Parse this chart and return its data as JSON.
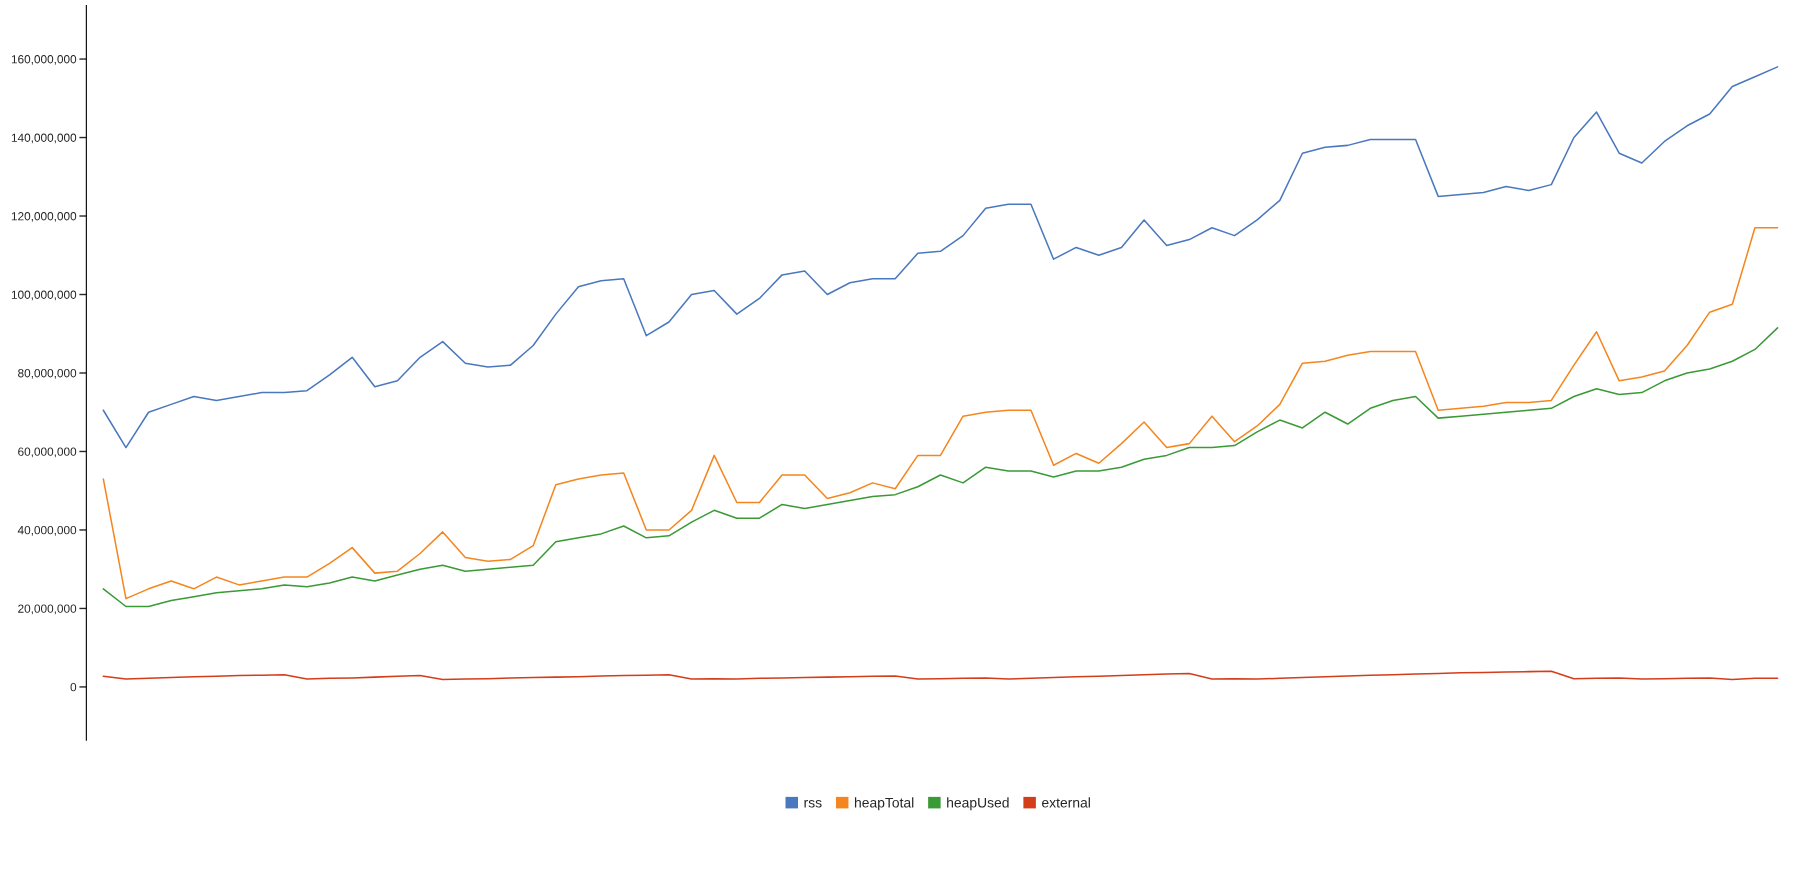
{
  "chart_data": {
    "type": "line",
    "categories": [
      null,
      null,
      null,
      null,
      null,
      null,
      null,
      null,
      null,
      null,
      null,
      null,
      null,
      null,
      null,
      null,
      null,
      null,
      null,
      null,
      null,
      null,
      null,
      null,
      null,
      null,
      null,
      null,
      null,
      null,
      null,
      null,
      null,
      null,
      null,
      null,
      null,
      null,
      null,
      null,
      null,
      null,
      null,
      null,
      null,
      null,
      null,
      null,
      null,
      null,
      null,
      null,
      null,
      null,
      null,
      null,
      null,
      null,
      null,
      null,
      null,
      null,
      null,
      null,
      null,
      null,
      null,
      null,
      null,
      null,
      null,
      null,
      null,
      null,
      null
    ],
    "ylim": [
      -13600000,
      173600000
    ],
    "yticks": [
      {
        "value": 0,
        "label": "0"
      },
      {
        "value": 20000000,
        "label": "20,000,000"
      },
      {
        "value": 40000000,
        "label": "40,000,000"
      },
      {
        "value": 60000000,
        "label": "60,000,000"
      },
      {
        "value": 80000000,
        "label": "80,000,000"
      },
      {
        "value": 100000000,
        "label": "100,000,000"
      },
      {
        "value": 120000000,
        "label": "120,000,000"
      },
      {
        "value": 140000000,
        "label": "140,000,000"
      },
      {
        "value": 160000000,
        "label": "160,000,000"
      }
    ],
    "tick_labels": "y",
    "legend": "bottom",
    "grid": false,
    "series": [
      {
        "name": "rss",
        "color": "#4a78bf",
        "values": [
          70500000.0,
          61000000.0,
          70000000.0,
          72000000.0,
          74000000.0,
          73000000.0,
          74000000.0,
          75000000.0,
          75000000.0,
          75500000.0,
          79500000.0,
          84000000.0,
          76500000.0,
          78000000.0,
          84000000.0,
          88000000.0,
          82500000.0,
          81500000.0,
          82000000.0,
          87000000.0,
          95000000.0,
          102000000.0,
          103500000.0,
          104000000.0,
          89500000.0,
          93000000.0,
          100000000.0,
          101000000.0,
          95000000.0,
          99000000.0,
          105000000.0,
          106000000.0,
          100000000.0,
          103000000.0,
          104000000.0,
          104000000.0,
          110500000.0,
          111000000.0,
          115000000.0,
          122000000.0,
          123000000.0,
          123000000.0,
          109000000.0,
          112000000.0,
          110000000.0,
          112000000.0,
          119000000.0,
          112500000.0,
          114000000.0,
          117000000.0,
          115000000.0,
          119000000.0,
          124000000.0,
          136000000.0,
          137500000.0,
          138000000.0,
          139500000.0,
          139500000.0,
          139500000.0,
          125000000.0,
          125500000.0,
          126000000.0,
          127500000.0,
          126500000.0,
          128000000.0,
          140000000.0,
          146500000.0,
          136000000.0,
          133500000.0,
          139000000.0,
          143000000.0,
          146000000.0,
          153000000.0,
          155500000.0,
          158000000.0
        ]
      },
      {
        "name": "heapTotal",
        "color": "#f5861f",
        "values": [
          53000000.0,
          22500000.0,
          25000000.0,
          27000000.0,
          25000000.0,
          28000000.0,
          26000000.0,
          27000000.0,
          28000000.0,
          28000000.0,
          31500000.0,
          35500000.0,
          29000000.0,
          29500000.0,
          34000000.0,
          39500000.0,
          33000000.0,
          32000000.0,
          32500000.0,
          36000000.0,
          51500000.0,
          53000000.0,
          54000000.0,
          54500000.0,
          40000000.0,
          40000000.0,
          45000000.0,
          59000000.0,
          47000000.0,
          47000000.0,
          54000000.0,
          54000000.0,
          48000000.0,
          49500000.0,
          52000000.0,
          50500000.0,
          59000000.0,
          59000000.0,
          69000000.0,
          70000000.0,
          70500000.0,
          70500000.0,
          56500000.0,
          59500000.0,
          57000000.0,
          62000000.0,
          67500000.0,
          61000000.0,
          62000000.0,
          69000000.0,
          62500000.0,
          66500000.0,
          72000000.0,
          82500000.0,
          83000000.0,
          84500000.0,
          85500000.0,
          85500000.0,
          85500000.0,
          70500000.0,
          71000000.0,
          71500000.0,
          72500000.0,
          72500000.0,
          73000000.0,
          82000000.0,
          90500000.0,
          78000000.0,
          79000000.0,
          80500000.0,
          87000000.0,
          95500000.0,
          97500000.0,
          117000000.0,
          117000000.0
        ]
      },
      {
        "name": "heapUsed",
        "color": "#3a9a35",
        "values": [
          25000000.0,
          20500000.0,
          20500000.0,
          22000000.0,
          23000000.0,
          24000000.0,
          24500000.0,
          25000000.0,
          26000000.0,
          25500000.0,
          26500000.0,
          28000000.0,
          27000000.0,
          28500000.0,
          30000000.0,
          31000000.0,
          29500000.0,
          30000000.0,
          30500000.0,
          31000000.0,
          37000000.0,
          38000000.0,
          39000000.0,
          41000000.0,
          38000000.0,
          38500000.0,
          42000000.0,
          45000000.0,
          43000000.0,
          43000000.0,
          46500000.0,
          45500000.0,
          46500000.0,
          47500000.0,
          48500000.0,
          49000000.0,
          51000000.0,
          54000000.0,
          52000000.0,
          56000000.0,
          55000000.0,
          55000000.0,
          53500000.0,
          55000000.0,
          55000000.0,
          56000000.0,
          58000000.0,
          59000000.0,
          61000000.0,
          61000000.0,
          61500000.0,
          65000000.0,
          68000000.0,
          66000000.0,
          70000000.0,
          67000000.0,
          71000000.0,
          73000000.0,
          74000000.0,
          68500000.0,
          69000000.0,
          69500000.0,
          70000000.0,
          70500000.0,
          71000000.0,
          74000000.0,
          76000000.0,
          74500000.0,
          75000000.0,
          78000000.0,
          80000000.0,
          81000000.0,
          83000000.0,
          86000000.0,
          91500000.0
        ]
      },
      {
        "name": "external",
        "color": "#d43d1a",
        "values": [
          2700000.0,
          2000000.0,
          2200000.0,
          2400000.0,
          2600000.0,
          2700000.0,
          2900000.0,
          3000000.0,
          3100000.0,
          2000000.0,
          2200000.0,
          2300000.0,
          2500000.0,
          2700000.0,
          2900000.0,
          1900000.0,
          2000000.0,
          2100000.0,
          2300000.0,
          2400000.0,
          2500000.0,
          2600000.0,
          2800000.0,
          2900000.0,
          3000000.0,
          3100000.0,
          2000000.0,
          2100000.0,
          2000000.0,
          2200000.0,
          2300000.0,
          2400000.0,
          2500000.0,
          2600000.0,
          2700000.0,
          2800000.0,
          2000000.0,
          2100000.0,
          2200000.0,
          2300000.0,
          2000000.0,
          2200000.0,
          2400000.0,
          2600000.0,
          2700000.0,
          2900000.0,
          3100000.0,
          3300000.0,
          3400000.0,
          2000000.0,
          2100000.0,
          2000000.0,
          2200000.0,
          2400000.0,
          2600000.0,
          2800000.0,
          3000000.0,
          3100000.0,
          3300000.0,
          3400000.0,
          3600000.0,
          3700000.0,
          3800000.0,
          3900000.0,
          4000000.0,
          2100000.0,
          2200000.0,
          2300000.0,
          2000000.0,
          2100000.0,
          2200000.0,
          2300000.0,
          1900000.0,
          2200000.0,
          2200000.0
        ]
      }
    ]
  }
}
